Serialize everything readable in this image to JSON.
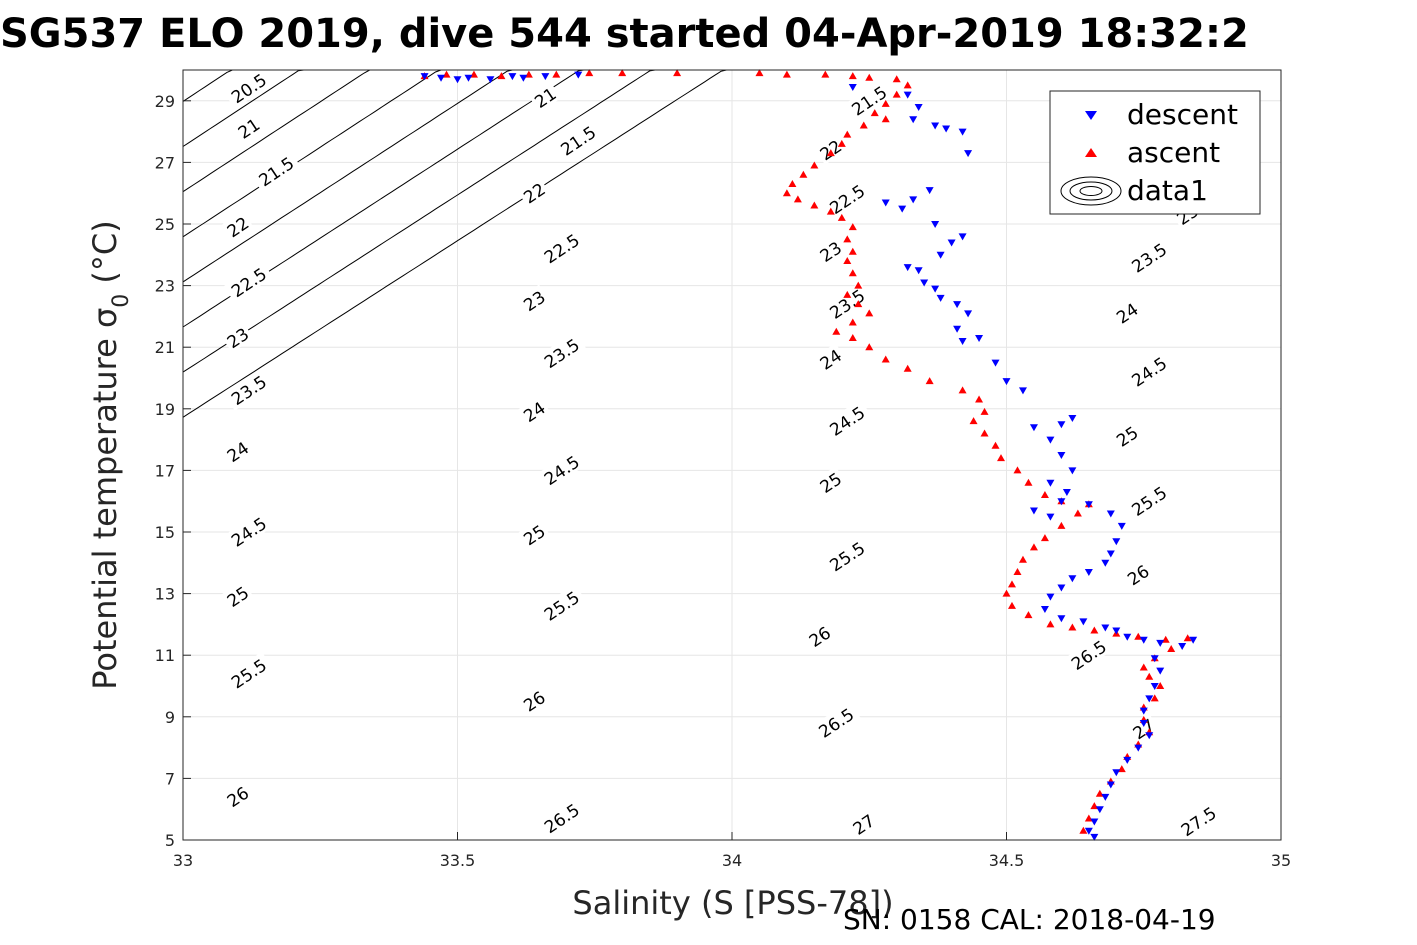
{
  "chart_data": {
    "type": "scatter",
    "title": "SG537 ELO 2019, dive 544 started 04-Apr-2019 18:32:2",
    "xlabel": "Salinity (S [PSS-78])",
    "ylabel_main": "Potential temperature σ",
    "ylabel_sub": "0",
    "ylabel_unit": " (°C)",
    "xlim": [
      33,
      35
    ],
    "ylim": [
      5,
      30
    ],
    "xticks": [
      33,
      33.5,
      34,
      34.5,
      35
    ],
    "xtick_labels": [
      "33",
      "33.5",
      "34",
      "34.5",
      "35"
    ],
    "yticks": [
      5,
      7,
      9,
      11,
      13,
      15,
      17,
      19,
      21,
      23,
      25,
      27,
      29
    ],
    "ytick_labels": [
      "5",
      "7",
      "9",
      "11",
      "13",
      "15",
      "17",
      "19",
      "21",
      "23",
      "25",
      "27",
      "29"
    ],
    "grid": true,
    "legend_position": "top-right",
    "legend": [
      "descent",
      "ascent",
      "data1"
    ],
    "footer": "SN: 0158  CAL: 2018-04-19",
    "colors": {
      "descent": "#0000ff",
      "ascent": "#ff0000",
      "contour": "#000000"
    },
    "contour_levels": [
      20.5,
      21,
      21.5,
      22,
      22.5,
      23,
      23.5,
      24,
      24.5,
      25,
      25.5,
      26,
      26.5,
      27,
      27.5
    ],
    "contour_labels": [
      {
        "text": "20.5",
        "s": 33.12,
        "t": 29.4
      },
      {
        "text": "21",
        "s": 33.12,
        "t": 28.1
      },
      {
        "text": "21.5",
        "s": 33.17,
        "t": 26.7
      },
      {
        "text": "22",
        "s": 33.1,
        "t": 24.9
      },
      {
        "text": "22.5",
        "s": 33.12,
        "t": 23.1
      },
      {
        "text": "23",
        "s": 33.1,
        "t": 21.3
      },
      {
        "text": "23.5",
        "s": 33.12,
        "t": 19.6
      },
      {
        "text": "24",
        "s": 33.1,
        "t": 17.6
      },
      {
        "text": "24.5",
        "s": 33.12,
        "t": 15.0
      },
      {
        "text": "25",
        "s": 33.1,
        "t": 12.9
      },
      {
        "text": "25.5",
        "s": 33.12,
        "t": 10.4
      },
      {
        "text": "26",
        "s": 33.1,
        "t": 6.4
      },
      {
        "text": "21",
        "s": 33.66,
        "t": 29.1
      },
      {
        "text": "21.5",
        "s": 33.72,
        "t": 27.7
      },
      {
        "text": "22",
        "s": 33.64,
        "t": 26.0
      },
      {
        "text": "22.5",
        "s": 33.69,
        "t": 24.2
      },
      {
        "text": "23",
        "s": 33.64,
        "t": 22.5
      },
      {
        "text": "23.5",
        "s": 33.69,
        "t": 20.8
      },
      {
        "text": "24",
        "s": 33.64,
        "t": 18.9
      },
      {
        "text": "24.5",
        "s": 33.69,
        "t": 17.0
      },
      {
        "text": "25",
        "s": 33.64,
        "t": 14.9
      },
      {
        "text": "25.5",
        "s": 33.69,
        "t": 12.6
      },
      {
        "text": "26",
        "s": 33.64,
        "t": 9.5
      },
      {
        "text": "26.5",
        "s": 33.69,
        "t": 5.7
      },
      {
        "text": "21.5",
        "s": 34.25,
        "t": 29.0
      },
      {
        "text": "22",
        "s": 34.18,
        "t": 27.4
      },
      {
        "text": "22.5",
        "s": 34.21,
        "t": 25.8
      },
      {
        "text": "23",
        "s": 34.18,
        "t": 24.1
      },
      {
        "text": "23.5",
        "s": 34.21,
        "t": 22.4
      },
      {
        "text": "24",
        "s": 34.18,
        "t": 20.6
      },
      {
        "text": "24.5",
        "s": 34.21,
        "t": 18.6
      },
      {
        "text": "25",
        "s": 34.18,
        "t": 16.6
      },
      {
        "text": "25.5",
        "s": 34.21,
        "t": 14.2
      },
      {
        "text": "26",
        "s": 34.16,
        "t": 11.6
      },
      {
        "text": "26.5",
        "s": 34.19,
        "t": 8.8
      },
      {
        "text": "27",
        "s": 34.24,
        "t": 5.5
      },
      {
        "text": "23",
        "s": 34.83,
        "t": 25.3
      },
      {
        "text": "23.5",
        "s": 34.76,
        "t": 23.9
      },
      {
        "text": "24",
        "s": 34.72,
        "t": 22.1
      },
      {
        "text": "24.5",
        "s": 34.76,
        "t": 20.2
      },
      {
        "text": "25",
        "s": 34.72,
        "t": 18.1
      },
      {
        "text": "25.5",
        "s": 34.76,
        "t": 16.0
      },
      {
        "text": "26",
        "s": 34.74,
        "t": 13.6
      },
      {
        "text": "26.5",
        "s": 34.65,
        "t": 11.0
      },
      {
        "text": "27",
        "s": 34.75,
        "t": 8.6
      },
      {
        "text": "27.5",
        "s": 34.85,
        "t": 5.6
      }
    ],
    "series": [
      {
        "name": "descent",
        "marker": "down-triangle",
        "points": [
          [
            33.44,
            29.8
          ],
          [
            33.47,
            29.75
          ],
          [
            33.5,
            29.7
          ],
          [
            33.52,
            29.75
          ],
          [
            33.56,
            29.7
          ],
          [
            33.6,
            29.8
          ],
          [
            33.62,
            29.75
          ],
          [
            33.66,
            29.8
          ],
          [
            33.72,
            29.85
          ],
          [
            34.22,
            29.45
          ],
          [
            34.32,
            29.2
          ],
          [
            34.34,
            28.8
          ],
          [
            34.33,
            28.4
          ],
          [
            34.37,
            28.2
          ],
          [
            34.39,
            28.1
          ],
          [
            34.42,
            28.0
          ],
          [
            34.43,
            27.3
          ],
          [
            34.36,
            26.1
          ],
          [
            34.33,
            25.8
          ],
          [
            34.28,
            25.7
          ],
          [
            34.31,
            25.5
          ],
          [
            34.37,
            25.0
          ],
          [
            34.42,
            24.6
          ],
          [
            34.4,
            24.4
          ],
          [
            34.38,
            24.0
          ],
          [
            34.32,
            23.6
          ],
          [
            34.34,
            23.5
          ],
          [
            34.35,
            23.1
          ],
          [
            34.37,
            22.9
          ],
          [
            34.38,
            22.6
          ],
          [
            34.41,
            22.4
          ],
          [
            34.43,
            22.1
          ],
          [
            34.41,
            21.6
          ],
          [
            34.45,
            21.3
          ],
          [
            34.42,
            21.2
          ],
          [
            34.48,
            20.5
          ],
          [
            34.5,
            19.9
          ],
          [
            34.53,
            19.6
          ],
          [
            34.55,
            18.4
          ],
          [
            34.6,
            18.5
          ],
          [
            34.62,
            18.7
          ],
          [
            34.58,
            18.0
          ],
          [
            34.6,
            17.5
          ],
          [
            34.62,
            17.0
          ],
          [
            34.58,
            16.6
          ],
          [
            34.61,
            16.3
          ],
          [
            34.6,
            16.0
          ],
          [
            34.55,
            15.7
          ],
          [
            34.58,
            15.5
          ],
          [
            34.65,
            15.9
          ],
          [
            34.69,
            15.6
          ],
          [
            34.71,
            15.2
          ],
          [
            34.7,
            14.7
          ],
          [
            34.69,
            14.3
          ],
          [
            34.68,
            14.0
          ],
          [
            34.65,
            13.7
          ],
          [
            34.62,
            13.5
          ],
          [
            34.6,
            13.2
          ],
          [
            34.58,
            12.9
          ],
          [
            34.57,
            12.5
          ],
          [
            34.6,
            12.2
          ],
          [
            34.64,
            12.1
          ],
          [
            34.68,
            11.9
          ],
          [
            34.7,
            11.8
          ],
          [
            34.72,
            11.6
          ],
          [
            34.75,
            11.5
          ],
          [
            34.78,
            11.4
          ],
          [
            34.82,
            11.3
          ],
          [
            34.84,
            11.5
          ],
          [
            34.77,
            10.9
          ],
          [
            34.78,
            10.5
          ],
          [
            34.77,
            10.0
          ],
          [
            34.76,
            9.6
          ],
          [
            34.75,
            9.2
          ],
          [
            34.75,
            8.8
          ],
          [
            34.76,
            8.4
          ],
          [
            34.74,
            8.0
          ],
          [
            34.72,
            7.6
          ],
          [
            34.7,
            7.2
          ],
          [
            34.69,
            6.8
          ],
          [
            34.68,
            6.4
          ],
          [
            34.67,
            6.0
          ],
          [
            34.66,
            5.6
          ],
          [
            34.65,
            5.3
          ],
          [
            34.66,
            5.1
          ]
        ]
      },
      {
        "name": "ascent",
        "marker": "up-triangle",
        "points": [
          [
            33.44,
            29.8
          ],
          [
            33.48,
            29.85
          ],
          [
            33.53,
            29.85
          ],
          [
            33.58,
            29.8
          ],
          [
            33.63,
            29.85
          ],
          [
            33.68,
            29.85
          ],
          [
            33.74,
            29.9
          ],
          [
            33.8,
            29.9
          ],
          [
            33.9,
            29.9
          ],
          [
            34.05,
            29.9
          ],
          [
            34.1,
            29.85
          ],
          [
            34.17,
            29.85
          ],
          [
            34.22,
            29.8
          ],
          [
            34.25,
            29.75
          ],
          [
            34.3,
            29.7
          ],
          [
            34.32,
            29.5
          ],
          [
            34.3,
            29.2
          ],
          [
            34.28,
            28.9
          ],
          [
            34.26,
            28.6
          ],
          [
            34.28,
            28.4
          ],
          [
            34.24,
            28.2
          ],
          [
            34.21,
            27.9
          ],
          [
            34.2,
            27.6
          ],
          [
            34.18,
            27.3
          ],
          [
            34.15,
            26.9
          ],
          [
            34.13,
            26.6
          ],
          [
            34.11,
            26.3
          ],
          [
            34.1,
            26.0
          ],
          [
            34.12,
            25.8
          ],
          [
            34.15,
            25.6
          ],
          [
            34.18,
            25.4
          ],
          [
            34.2,
            25.2
          ],
          [
            34.22,
            24.9
          ],
          [
            34.21,
            24.5
          ],
          [
            34.22,
            24.1
          ],
          [
            34.21,
            23.8
          ],
          [
            34.22,
            23.4
          ],
          [
            34.23,
            23.0
          ],
          [
            34.21,
            22.7
          ],
          [
            34.23,
            22.4
          ],
          [
            34.25,
            22.1
          ],
          [
            34.22,
            21.8
          ],
          [
            34.19,
            21.5
          ],
          [
            34.22,
            21.3
          ],
          [
            34.25,
            21.0
          ],
          [
            34.28,
            20.6
          ],
          [
            34.32,
            20.3
          ],
          [
            34.36,
            19.9
          ],
          [
            34.42,
            19.6
          ],
          [
            34.45,
            19.3
          ],
          [
            34.46,
            18.9
          ],
          [
            34.44,
            18.6
          ],
          [
            34.46,
            18.2
          ],
          [
            34.48,
            17.8
          ],
          [
            34.49,
            17.4
          ],
          [
            34.52,
            17.0
          ],
          [
            34.54,
            16.6
          ],
          [
            34.57,
            16.2
          ],
          [
            34.6,
            16.0
          ],
          [
            34.65,
            15.9
          ],
          [
            34.63,
            15.6
          ],
          [
            34.6,
            15.2
          ],
          [
            34.57,
            14.8
          ],
          [
            34.55,
            14.5
          ],
          [
            34.53,
            14.1
          ],
          [
            34.52,
            13.7
          ],
          [
            34.51,
            13.3
          ],
          [
            34.5,
            13.0
          ],
          [
            34.51,
            12.6
          ],
          [
            34.54,
            12.3
          ],
          [
            34.58,
            12.0
          ],
          [
            34.62,
            11.9
          ],
          [
            34.66,
            11.8
          ],
          [
            34.7,
            11.7
          ],
          [
            34.74,
            11.6
          ],
          [
            34.79,
            11.5
          ],
          [
            34.83,
            11.55
          ],
          [
            34.8,
            11.2
          ],
          [
            34.77,
            10.9
          ],
          [
            34.75,
            10.6
          ],
          [
            34.76,
            10.3
          ],
          [
            34.78,
            10.0
          ],
          [
            34.77,
            9.6
          ],
          [
            34.75,
            9.3
          ],
          [
            34.75,
            8.9
          ],
          [
            34.76,
            8.5
          ],
          [
            34.74,
            8.1
          ],
          [
            34.72,
            7.7
          ],
          [
            34.71,
            7.3
          ],
          [
            34.69,
            6.9
          ],
          [
            34.67,
            6.5
          ],
          [
            34.66,
            6.1
          ],
          [
            34.65,
            5.7
          ],
          [
            34.64,
            5.3
          ]
        ]
      }
    ]
  }
}
